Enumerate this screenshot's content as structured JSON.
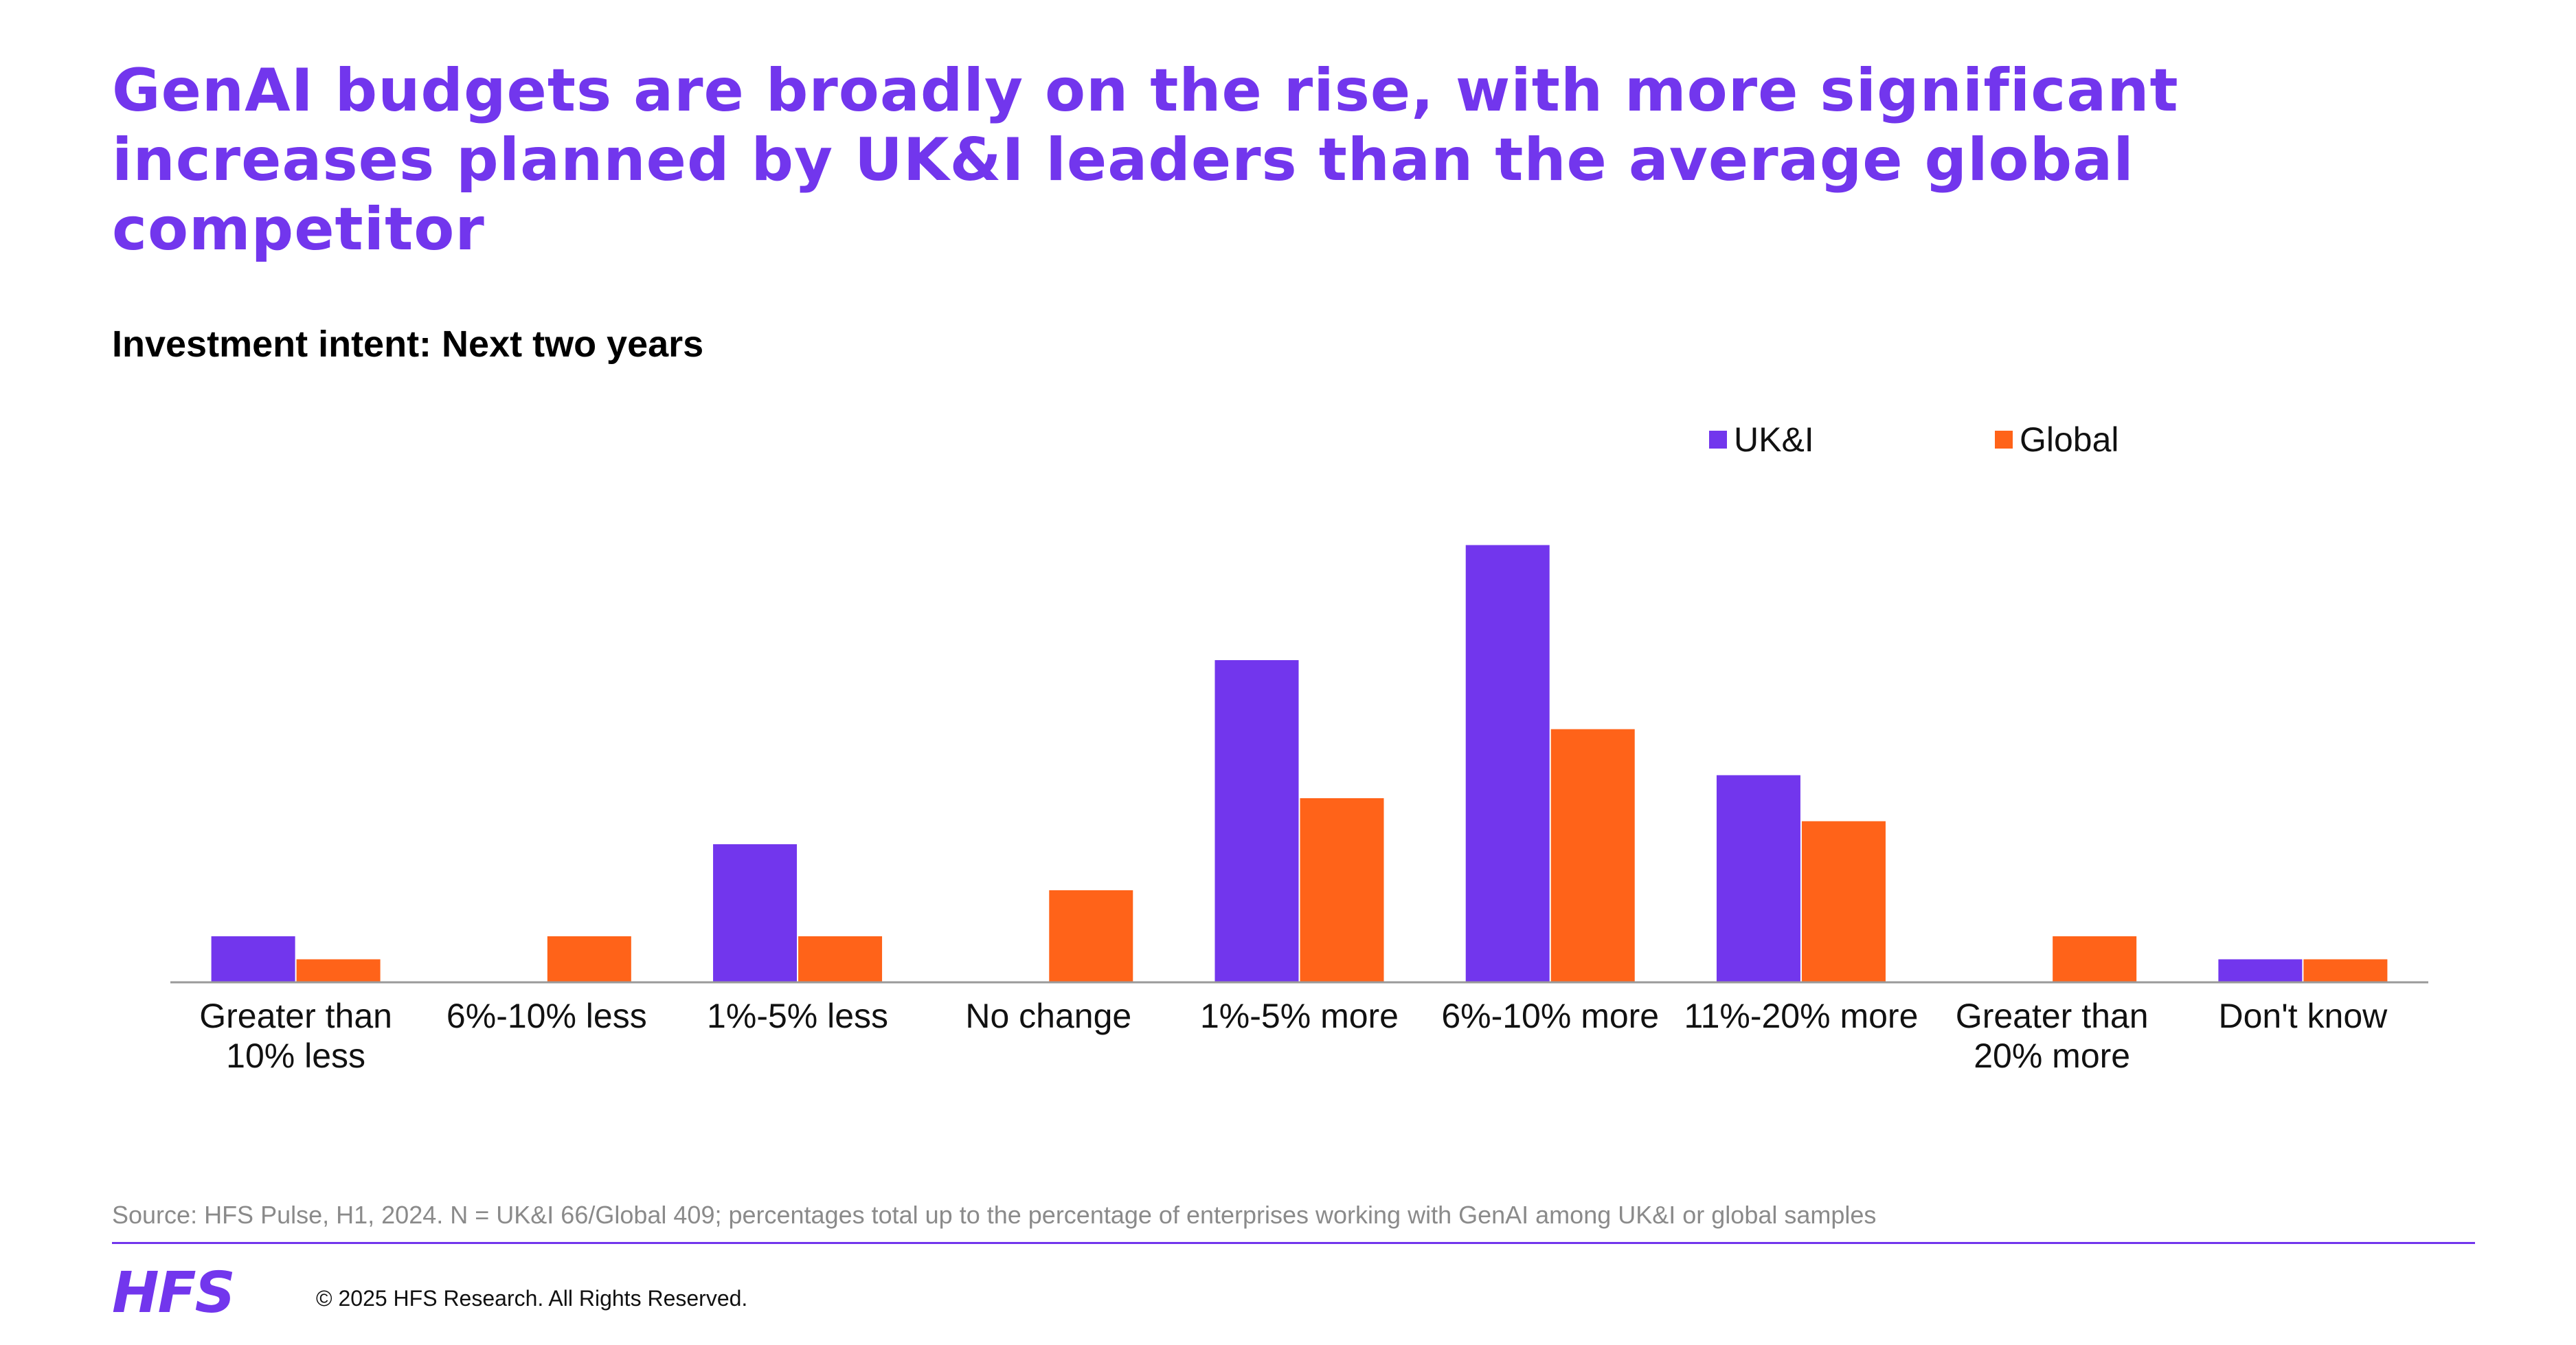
{
  "title": "GenAI budgets are broadly on the rise, with more significant increases planned by UK&I leaders than the average global competitor",
  "subtitle": "Investment intent: Next two years",
  "source": "Source: HFS Pulse, H1, 2024. N = UK&I 66/Global 409; percentages total up to the percentage of enterprises working with GenAI among UK&I or global samples",
  "footer": {
    "logo": "HFS",
    "copyright": "© 2025 HFS Research. All Rights Reserved."
  },
  "colors": {
    "uki": "#7236ed",
    "global": "#ff6319",
    "axis": "#9a9a9a",
    "accent": "#7236ed"
  },
  "chart_data": {
    "type": "bar",
    "title": "Investment intent: Next two years",
    "xlabel": "",
    "ylabel": "",
    "ylim": [
      0,
      20
    ],
    "grid": false,
    "legend": "top-right",
    "categories": [
      [
        "Greater than",
        "10% less"
      ],
      [
        "6%-10% less"
      ],
      [
        "1%-5% less"
      ],
      [
        "No change"
      ],
      [
        "1%-5% more"
      ],
      [
        "6%-10% more"
      ],
      [
        "11%-20% more"
      ],
      [
        "Greater than",
        "20% more"
      ],
      [
        "Don't know"
      ]
    ],
    "series": [
      {
        "name": "UK&I",
        "color": "#7236ed",
        "values": [
          2,
          0,
          6,
          0,
          14,
          19,
          9,
          0,
          1
        ]
      },
      {
        "name": "Global",
        "color": "#ff6319",
        "values": [
          1,
          2,
          2,
          4,
          8,
          11,
          7,
          2,
          1
        ]
      }
    ]
  }
}
